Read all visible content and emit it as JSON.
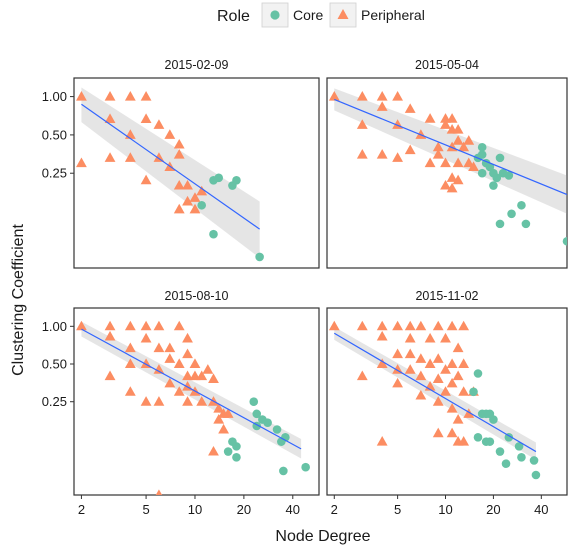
{
  "colors": {
    "core": "#66c2a5",
    "peripheral": "#fc8d62",
    "fit": "#3366ff",
    "band": "#999999"
  },
  "legend": {
    "title": "Role",
    "items": [
      {
        "label": "Core",
        "shape": "circle",
        "color": "#66c2a5"
      },
      {
        "label": "Peripheral",
        "shape": "triangle",
        "color": "#fc8d62"
      }
    ]
  },
  "chart_data": {
    "type": "scatter",
    "xlabel": "Node Degree",
    "ylabel": "Clustering Coefficient",
    "x_scale": "log",
    "y_scale": "log",
    "xlim": [
      1.8,
      58
    ],
    "ylim": [
      0.045,
      1.4
    ],
    "x_ticks": [
      2,
      5,
      10,
      20,
      40
    ],
    "y_ticks": [
      0.25,
      0.5,
      1.0
    ],
    "y_tick_labels": [
      "0.25",
      "0.50",
      "1.00"
    ],
    "grid": false,
    "legend_position": "top",
    "panels": [
      {
        "title": "2015-02-09",
        "fit": {
          "x": [
            2,
            25
          ],
          "y": [
            0.87,
            0.091
          ],
          "band_low": [
            0.63,
            0.054
          ],
          "band_high": [
            1.18,
            0.15
          ]
        },
        "peripheral": [
          [
            2,
            1.0
          ],
          [
            3,
            1.0
          ],
          [
            4,
            1.0
          ],
          [
            5,
            1.0
          ],
          [
            3,
            0.667
          ],
          [
            5,
            0.667
          ],
          [
            6,
            0.6
          ],
          [
            4,
            0.5
          ],
          [
            7,
            0.5
          ],
          [
            8,
            0.42
          ],
          [
            8,
            0.35
          ],
          [
            3,
            0.33
          ],
          [
            4,
            0.33
          ],
          [
            6,
            0.33
          ],
          [
            2,
            0.3
          ],
          [
            7,
            0.28
          ],
          [
            5,
            0.22
          ],
          [
            8,
            0.2
          ],
          [
            9,
            0.2
          ],
          [
            11,
            0.18
          ],
          [
            10,
            0.16
          ],
          [
            9,
            0.15
          ],
          [
            8,
            0.13
          ],
          [
            10,
            0.13
          ]
        ],
        "core": [
          [
            11,
            0.14
          ],
          [
            13,
            0.22
          ],
          [
            14,
            0.23
          ],
          [
            17,
            0.2
          ],
          [
            18,
            0.22
          ],
          [
            13,
            0.083
          ],
          [
            25,
            0.055
          ]
        ]
      },
      {
        "title": "2015-05-04",
        "fit": {
          "x": [
            2,
            58
          ],
          "y": [
            0.95,
            0.17
          ],
          "band_low": [
            0.78,
            0.12
          ],
          "band_high": [
            1.16,
            0.24
          ]
        },
        "peripheral": [
          [
            2,
            1.0
          ],
          [
            3,
            1.0
          ],
          [
            4,
            1.0
          ],
          [
            5,
            1.0
          ],
          [
            4,
            0.83
          ],
          [
            6,
            0.8
          ],
          [
            8,
            0.67
          ],
          [
            10,
            0.67
          ],
          [
            11,
            0.67
          ],
          [
            3,
            0.6
          ],
          [
            5,
            0.6
          ],
          [
            7,
            0.5
          ],
          [
            10,
            0.6
          ],
          [
            11,
            0.55
          ],
          [
            12,
            0.55
          ],
          [
            12,
            0.45
          ],
          [
            14,
            0.45
          ],
          [
            9,
            0.4
          ],
          [
            11,
            0.4
          ],
          [
            13,
            0.4
          ],
          [
            6,
            0.38
          ],
          [
            9,
            0.35
          ],
          [
            3,
            0.35
          ],
          [
            4,
            0.35
          ],
          [
            5,
            0.33
          ],
          [
            10,
            0.3
          ],
          [
            12,
            0.3
          ],
          [
            14,
            0.3
          ],
          [
            15,
            0.28
          ],
          [
            8,
            0.3
          ],
          [
            11,
            0.23
          ],
          [
            12,
            0.22
          ],
          [
            10,
            0.2
          ],
          [
            11,
            0.19
          ]
        ],
        "core": [
          [
            16,
            0.33
          ],
          [
            17,
            0.4
          ],
          [
            17,
            0.35
          ],
          [
            18,
            0.3
          ],
          [
            19,
            0.28
          ],
          [
            20,
            0.25
          ],
          [
            21,
            0.23
          ],
          [
            22,
            0.33
          ],
          [
            17,
            0.25
          ],
          [
            20,
            0.2
          ],
          [
            23,
            0.25
          ],
          [
            25,
            0.24
          ],
          [
            30,
            0.14
          ],
          [
            26,
            0.12
          ],
          [
            22,
            0.1
          ],
          [
            32,
            0.1
          ],
          [
            58,
            0.073
          ]
        ]
      },
      {
        "title": "2015-08-10",
        "fit": {
          "x": [
            2,
            45
          ],
          "y": [
            0.95,
            0.105
          ],
          "band_low": [
            0.83,
            0.088
          ],
          "band_high": [
            1.09,
            0.126
          ]
        },
        "peripheral": [
          [
            2,
            1.0
          ],
          [
            3,
            1.0
          ],
          [
            4,
            1.0
          ],
          [
            5,
            1.0
          ],
          [
            6,
            1.0
          ],
          [
            8,
            1.0
          ],
          [
            3,
            0.83
          ],
          [
            5,
            0.8
          ],
          [
            9,
            0.8
          ],
          [
            4,
            0.67
          ],
          [
            6,
            0.67
          ],
          [
            7,
            0.67
          ],
          [
            9,
            0.6
          ],
          [
            4,
            0.5
          ],
          [
            5,
            0.5
          ],
          [
            7,
            0.55
          ],
          [
            8,
            0.5
          ],
          [
            10,
            0.5
          ],
          [
            12,
            0.45
          ],
          [
            3,
            0.4
          ],
          [
            6,
            0.45
          ],
          [
            9,
            0.4
          ],
          [
            10,
            0.4
          ],
          [
            11,
            0.4
          ],
          [
            4,
            0.3
          ],
          [
            7,
            0.35
          ],
          [
            9,
            0.33
          ],
          [
            8,
            0.3
          ],
          [
            10,
            0.3
          ],
          [
            13,
            0.38
          ],
          [
            5,
            0.25
          ],
          [
            6,
            0.25
          ],
          [
            9,
            0.25
          ],
          [
            11,
            0.25
          ],
          [
            13,
            0.25
          ],
          [
            14,
            0.22
          ],
          [
            15,
            0.2
          ],
          [
            14,
            0.18
          ],
          [
            16,
            0.2
          ],
          [
            15,
            0.15
          ],
          [
            13,
            0.1
          ],
          [
            6,
            0.045
          ]
        ],
        "core": [
          [
            17,
            0.12
          ],
          [
            16,
            0.1
          ],
          [
            18,
            0.11
          ],
          [
            18,
            0.09
          ],
          [
            23,
            0.25
          ],
          [
            24,
            0.2
          ],
          [
            26,
            0.18
          ],
          [
            28,
            0.17
          ],
          [
            32,
            0.15
          ],
          [
            34,
            0.12
          ],
          [
            36,
            0.13
          ],
          [
            24,
            0.16
          ],
          [
            35,
            0.07
          ],
          [
            48,
            0.075
          ]
        ]
      },
      {
        "title": "2015-11-02",
        "fit": {
          "x": [
            2,
            37
          ],
          "y": [
            0.88,
            0.1
          ],
          "band_low": [
            0.78,
            0.086
          ],
          "band_high": [
            0.99,
            0.118
          ]
        },
        "peripheral": [
          [
            2,
            1.0
          ],
          [
            3,
            1.0
          ],
          [
            4,
            1.0
          ],
          [
            5,
            1.0
          ],
          [
            6,
            1.0
          ],
          [
            7,
            1.0
          ],
          [
            9,
            1.0
          ],
          [
            11,
            1.0
          ],
          [
            13,
            1.0
          ],
          [
            4,
            0.83
          ],
          [
            6,
            0.8
          ],
          [
            8,
            0.8
          ],
          [
            10,
            0.8
          ],
          [
            12,
            0.67
          ],
          [
            5,
            0.6
          ],
          [
            6,
            0.6
          ],
          [
            7,
            0.55
          ],
          [
            9,
            0.55
          ],
          [
            4,
            0.5
          ],
          [
            8,
            0.5
          ],
          [
            11,
            0.5
          ],
          [
            13,
            0.5
          ],
          [
            5,
            0.45
          ],
          [
            6,
            0.45
          ],
          [
            10,
            0.45
          ],
          [
            3,
            0.4
          ],
          [
            7,
            0.4
          ],
          [
            9,
            0.38
          ],
          [
            12,
            0.4
          ],
          [
            5,
            0.35
          ],
          [
            8,
            0.33
          ],
          [
            10,
            0.3
          ],
          [
            11,
            0.35
          ],
          [
            13,
            0.3
          ],
          [
            15,
            0.3
          ],
          [
            7,
            0.28
          ],
          [
            9,
            0.25
          ],
          [
            11,
            0.22
          ],
          [
            12,
            0.18
          ],
          [
            14,
            0.2
          ],
          [
            9,
            0.14
          ],
          [
            11,
            0.14
          ],
          [
            12,
            0.12
          ],
          [
            13,
            0.12
          ],
          [
            4,
            0.12
          ]
        ],
        "core": [
          [
            16,
            0.42
          ],
          [
            15,
            0.3
          ],
          [
            17,
            0.2
          ],
          [
            18,
            0.2
          ],
          [
            19,
            0.2
          ],
          [
            20,
            0.18
          ],
          [
            16,
            0.13
          ],
          [
            18,
            0.12
          ],
          [
            19,
            0.12
          ],
          [
            22,
            0.1
          ],
          [
            25,
            0.13
          ],
          [
            29,
            0.11
          ],
          [
            24,
            0.08
          ],
          [
            30,
            0.09
          ],
          [
            36,
            0.085
          ],
          [
            37,
            0.065
          ]
        ]
      }
    ]
  }
}
